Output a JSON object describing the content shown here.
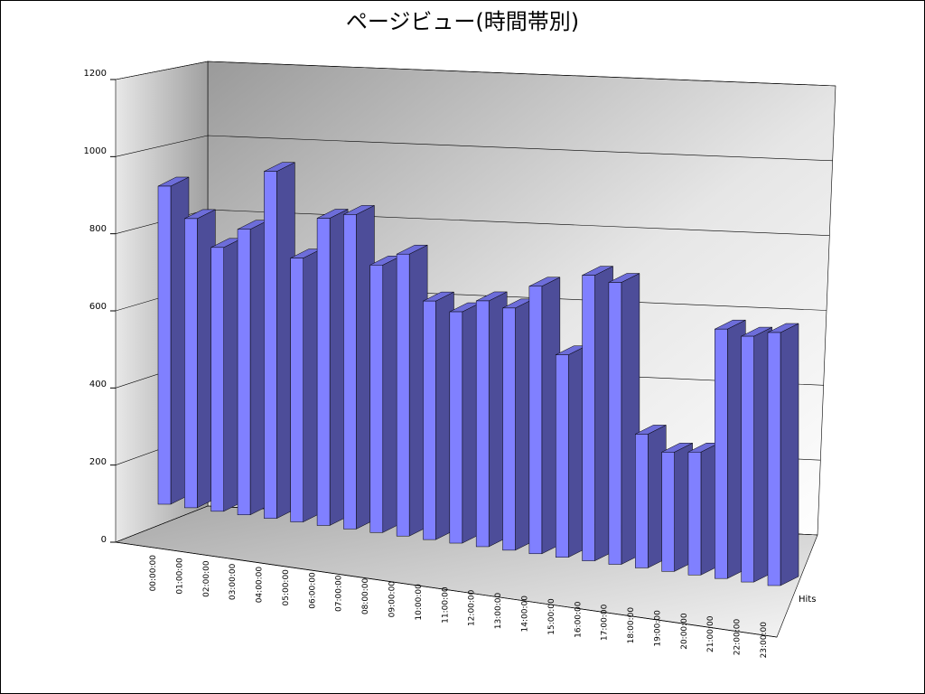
{
  "chart_data": {
    "type": "bar3d",
    "title": "ページビュー(時間帯別)",
    "categories": [
      "00:00:00",
      "01:00:00",
      "02:00:00",
      "03:00:00",
      "04:00:00",
      "05:00:00",
      "06:00:00",
      "07:00:00",
      "08:00:00",
      "09:00:00",
      "10:00:00",
      "11:00:00",
      "12:00:00",
      "13:00:00",
      "14:00:00",
      "15:00:00",
      "16:00:00",
      "17:00:00",
      "18:00:00",
      "19:00:00",
      "20:00:00",
      "21:00:00",
      "22:00:00",
      "23:00:00"
    ],
    "series": [
      {
        "name": "Hits",
        "color": "#8080ff",
        "values": [
          880,
          800,
          730,
          790,
          960,
          730,
          850,
          870,
          740,
          780,
          660,
          640,
          680,
          670,
          740,
          560,
          790,
          780,
          370,
          330,
          340,
          690,
          680,
          700
        ]
      }
    ],
    "ylim": [
      0,
      1200
    ],
    "yticks": [
      0,
      200,
      400,
      600,
      800,
      1000,
      1200
    ],
    "grid": true
  }
}
